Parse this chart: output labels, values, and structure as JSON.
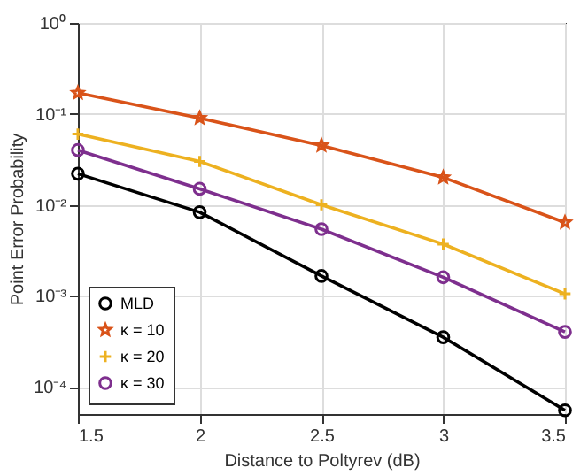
{
  "chart_data": {
    "type": "line",
    "xlabel": "Distance to Poltyrev (dB)",
    "ylabel": "Point Error Probability",
    "x": [
      1.5,
      2,
      2.5,
      3,
      3.5
    ],
    "series": [
      {
        "name": "MLD",
        "color": "#000000",
        "marker": "circle",
        "values": [
          0.022,
          0.0083,
          0.00165,
          0.00035,
          5.5e-05
        ]
      },
      {
        "name": "κ = 10",
        "color": "#d95319",
        "marker": "star",
        "values": [
          0.17,
          0.09,
          0.045,
          0.02,
          0.0064
        ]
      },
      {
        "name": "κ = 20",
        "color": "#edb120",
        "marker": "cross",
        "values": [
          0.06,
          0.03,
          0.01,
          0.0037,
          0.00105
        ]
      },
      {
        "name": "κ = 30",
        "color": "#7e2f8e",
        "marker": "circle",
        "values": [
          0.04,
          0.015,
          0.0054,
          0.0016,
          0.0004
        ]
      }
    ],
    "xlim": [
      1.5,
      3.5
    ],
    "xticks": [
      1.5,
      2,
      2.5,
      3,
      3.5
    ],
    "ylim": [
      5e-05,
      1
    ],
    "yticks": [
      {
        "value": 0.0001,
        "label": "10⁻⁴"
      },
      {
        "value": 0.001,
        "label": "10⁻³"
      },
      {
        "value": 0.01,
        "label": "10⁻²"
      },
      {
        "value": 0.1,
        "label": "10⁻¹"
      },
      {
        "value": 1,
        "label": "10⁰"
      }
    ],
    "log": "y",
    "grid": true,
    "legend": "bottom left",
    "line_style": "solid"
  }
}
